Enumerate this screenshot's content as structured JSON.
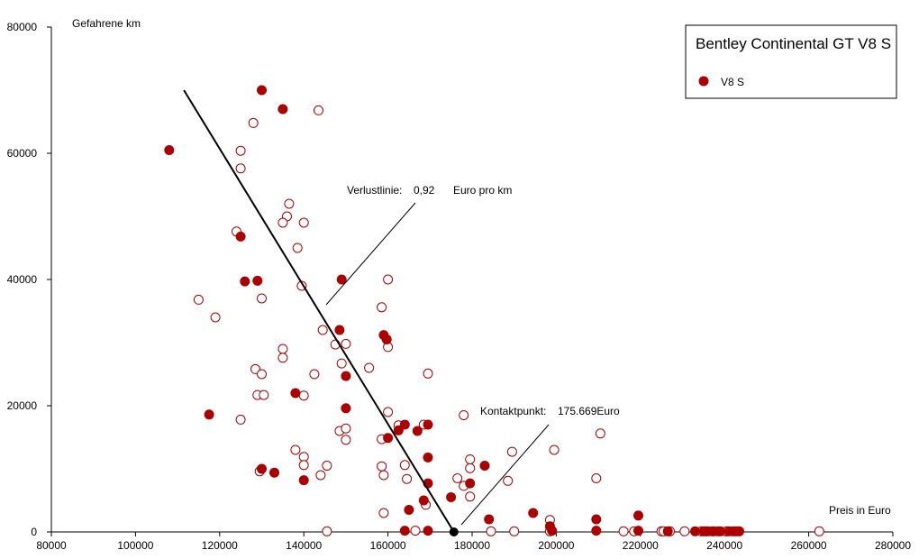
{
  "chart_data": {
    "type": "scatter",
    "legend": {
      "title": "Bentley Continental GT V8 S",
      "placement": "top-right"
    },
    "xlabel": "Preis in Euro",
    "ylabel": "Gefahrene km",
    "xlim": [
      80000,
      280000
    ],
    "ylim": [
      0,
      80000
    ],
    "x_ticks": [
      80000,
      100000,
      120000,
      140000,
      160000,
      180000,
      200000,
      220000,
      240000,
      260000,
      280000
    ],
    "y_ticks": [
      0,
      20000,
      40000,
      60000,
      80000
    ],
    "grid": false,
    "colors": {
      "marker": "#aa0000",
      "line": "#000000",
      "contact_point": "#000000"
    },
    "series": [
      {
        "name": "V8 S",
        "marker": "filled-circle",
        "points": [
          [
            108000,
            60500
          ],
          [
            130000,
            70000
          ],
          [
            135000,
            67000
          ],
          [
            125000,
            46800
          ],
          [
            126000,
            39700
          ],
          [
            129000,
            39800
          ],
          [
            149000,
            40000
          ],
          [
            148500,
            32000
          ],
          [
            159000,
            31200
          ],
          [
            159700,
            30500
          ],
          [
            150000,
            24700
          ],
          [
            117500,
            18600
          ],
          [
            138000,
            22000
          ],
          [
            150000,
            19600
          ],
          [
            130000,
            10000
          ],
          [
            133000,
            9400
          ],
          [
            140000,
            8200
          ],
          [
            162500,
            16100
          ],
          [
            164000,
            17000
          ],
          [
            160000,
            14900
          ],
          [
            167000,
            16000
          ],
          [
            169500,
            17000
          ],
          [
            169500,
            11800
          ],
          [
            169500,
            7700
          ],
          [
            168500,
            5000
          ],
          [
            165000,
            3500
          ],
          [
            164000,
            200
          ],
          [
            169500,
            200
          ],
          [
            175000,
            5500
          ],
          [
            179500,
            7700
          ],
          [
            183000,
            10500
          ],
          [
            184000,
            2000
          ],
          [
            194500,
            3000
          ],
          [
            198500,
            900
          ],
          [
            199000,
            200
          ],
          [
            209500,
            2000
          ],
          [
            209500,
            200
          ],
          [
            219500,
            2600
          ],
          [
            219500,
            200
          ],
          [
            226500,
            100
          ],
          [
            233000,
            100
          ],
          [
            235000,
            100
          ],
          [
            236000,
            100
          ],
          [
            237500,
            100
          ],
          [
            239000,
            100
          ],
          [
            241000,
            100
          ],
          [
            242500,
            100
          ],
          [
            243500,
            100
          ]
        ]
      },
      {
        "name": "",
        "marker": "open-circle",
        "points": [
          [
            128000,
            64800
          ],
          [
            143500,
            66800
          ],
          [
            125000,
            60400
          ],
          [
            125000,
            57600
          ],
          [
            136500,
            52000
          ],
          [
            136000,
            50000
          ],
          [
            135000,
            49000
          ],
          [
            140000,
            49000
          ],
          [
            124000,
            47600
          ],
          [
            138500,
            45000
          ],
          [
            139500,
            39000
          ],
          [
            160000,
            40000
          ],
          [
            115000,
            36800
          ],
          [
            130000,
            37000
          ],
          [
            119000,
            34000
          ],
          [
            158500,
            35600
          ],
          [
            144500,
            32000
          ],
          [
            147500,
            29700
          ],
          [
            150000,
            29800
          ],
          [
            160000,
            29300
          ],
          [
            135000,
            29000
          ],
          [
            135000,
            27600
          ],
          [
            149000,
            26700
          ],
          [
            155500,
            26000
          ],
          [
            128500,
            25800
          ],
          [
            130000,
            25000
          ],
          [
            142500,
            25000
          ],
          [
            169500,
            25100
          ],
          [
            129000,
            21700
          ],
          [
            130500,
            21700
          ],
          [
            140000,
            21600
          ],
          [
            160000,
            19000
          ],
          [
            178000,
            18500
          ],
          [
            125000,
            17800
          ],
          [
            148500,
            16000
          ],
          [
            150000,
            16400
          ],
          [
            150000,
            14600
          ],
          [
            158500,
            14700
          ],
          [
            162500,
            16900
          ],
          [
            168500,
            17000
          ],
          [
            138000,
            13000
          ],
          [
            140000,
            11900
          ],
          [
            140000,
            10600
          ],
          [
            145500,
            10500
          ],
          [
            129500,
            9600
          ],
          [
            144000,
            9000
          ],
          [
            158500,
            10400
          ],
          [
            159000,
            9000
          ],
          [
            164000,
            10600
          ],
          [
            164500,
            8400
          ],
          [
            176500,
            8500
          ],
          [
            178000,
            7300
          ],
          [
            179500,
            11500
          ],
          [
            179500,
            10100
          ],
          [
            179500,
            5600
          ],
          [
            189500,
            12700
          ],
          [
            188500,
            8100
          ],
          [
            199500,
            13000
          ],
          [
            210500,
            15600
          ],
          [
            209500,
            8500
          ],
          [
            159000,
            3000
          ],
          [
            169000,
            4300
          ],
          [
            198500,
            1900
          ],
          [
            145500,
            100
          ],
          [
            166500,
            200
          ],
          [
            184500,
            100
          ],
          [
            190000,
            100
          ],
          [
            198500,
            100
          ],
          [
            216000,
            100
          ],
          [
            218500,
            100
          ],
          [
            225000,
            100
          ],
          [
            225500,
            100
          ],
          [
            227000,
            100
          ],
          [
            230500,
            100
          ],
          [
            234500,
            100
          ],
          [
            235500,
            100
          ],
          [
            237000,
            100
          ],
          [
            238500,
            100
          ],
          [
            240500,
            100
          ],
          [
            242000,
            100
          ],
          [
            243000,
            100
          ],
          [
            262500,
            100
          ]
        ]
      }
    ],
    "fit_line": {
      "x": [
        111500,
        175669
      ],
      "y": [
        70000,
        0
      ]
    },
    "contact_point": {
      "x": 175669,
      "y": 0
    },
    "annotations": {
      "loss_line_label": "Verlustlinie:",
      "loss_line_value": "0,92",
      "loss_line_unit": "Euro pro km",
      "contact_label": "Kontaktpunkt:",
      "contact_value": "175.669Euro"
    }
  }
}
